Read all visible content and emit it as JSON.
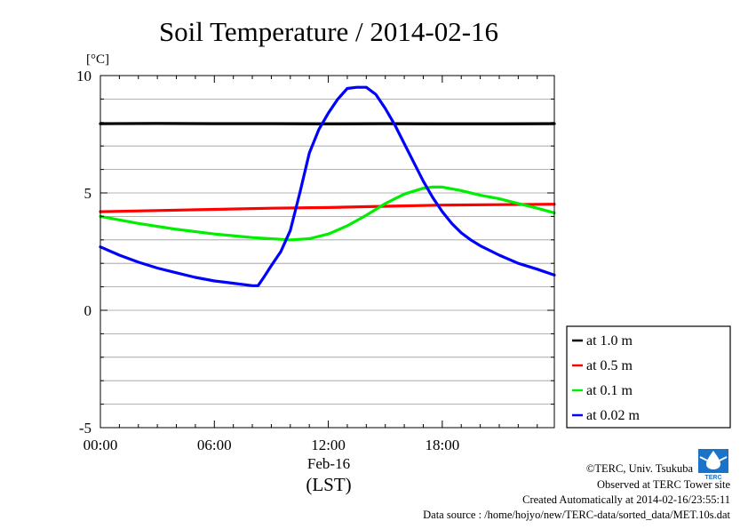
{
  "chart_data": {
    "type": "line",
    "title": "Soil Temperature / 2014-02-16",
    "ylabel": "[°C]",
    "xlabel": "Feb-16",
    "xlabel_2": "(LST)",
    "x_unit": "hour",
    "xlim": [
      0,
      23.9
    ],
    "ylim": [
      -5,
      10
    ],
    "y_ticks": [
      10,
      5,
      0,
      -5
    ],
    "y_tick_labels": [
      "10",
      "5",
      "0",
      "-5"
    ],
    "x_ticks": [
      0,
      6,
      12,
      18
    ],
    "x_tick_labels": [
      "00:00",
      "06:00",
      "12:00",
      "18:00"
    ],
    "grid": true,
    "legend_position": "right",
    "series": [
      {
        "name": "at 1.0 m",
        "color": "#000000",
        "x": [
          0,
          3,
          6,
          9,
          12,
          15,
          18,
          21,
          23.9
        ],
        "y": [
          7.95,
          7.96,
          7.95,
          7.95,
          7.94,
          7.95,
          7.94,
          7.94,
          7.95
        ]
      },
      {
        "name": "at 0.5 m",
        "color": "#ff0000",
        "x": [
          0,
          3,
          6,
          9,
          12,
          15,
          18,
          21,
          23.9
        ],
        "y": [
          4.2,
          4.25,
          4.3,
          4.35,
          4.38,
          4.43,
          4.48,
          4.5,
          4.52
        ]
      },
      {
        "name": "at 0.1 m",
        "color": "#00ee00",
        "x": [
          0,
          2,
          4,
          6,
          8,
          10,
          11,
          12,
          13,
          14,
          15,
          16,
          17,
          17.5,
          18,
          19,
          20,
          21,
          22,
          23,
          23.9
        ],
        "y": [
          4.0,
          3.7,
          3.45,
          3.25,
          3.1,
          3.0,
          3.05,
          3.25,
          3.6,
          4.05,
          4.55,
          4.95,
          5.2,
          5.25,
          5.25,
          5.1,
          4.9,
          4.75,
          4.55,
          4.35,
          4.15
        ]
      },
      {
        "name": "at 0.02 m",
        "color": "#0000ff",
        "x": [
          0,
          1,
          2,
          3,
          4,
          5,
          6,
          7,
          8,
          8.3,
          8.6,
          9,
          9.5,
          10,
          10.5,
          11,
          11.5,
          12,
          12.5,
          13,
          13.5,
          14,
          14.5,
          15,
          15.5,
          16,
          16.5,
          17,
          17.5,
          18,
          18.5,
          19,
          19.5,
          20,
          21,
          22,
          23,
          23.9
        ],
        "y": [
          2.7,
          2.35,
          2.05,
          1.8,
          1.6,
          1.4,
          1.25,
          1.15,
          1.05,
          1.05,
          1.4,
          1.9,
          2.5,
          3.4,
          5.0,
          6.7,
          7.7,
          8.4,
          9.0,
          9.45,
          9.5,
          9.5,
          9.2,
          8.6,
          7.9,
          7.1,
          6.3,
          5.5,
          4.8,
          4.2,
          3.7,
          3.3,
          3.0,
          2.75,
          2.35,
          2.0,
          1.75,
          1.5
        ]
      }
    ]
  },
  "credits": {
    "copyright": "©TERC, Univ. Tsukuba",
    "observed": "Observed at TERC Tower site",
    "created": "Created Automatically at 2014-02-16/23:55:11",
    "source": "Data source : /home/hojyo/new/TERC-data/sorted_data/MET.10s.dat"
  },
  "logo": {
    "text": "TERC",
    "color": "#1a73c9",
    "icon": "terc-logo-icon"
  }
}
